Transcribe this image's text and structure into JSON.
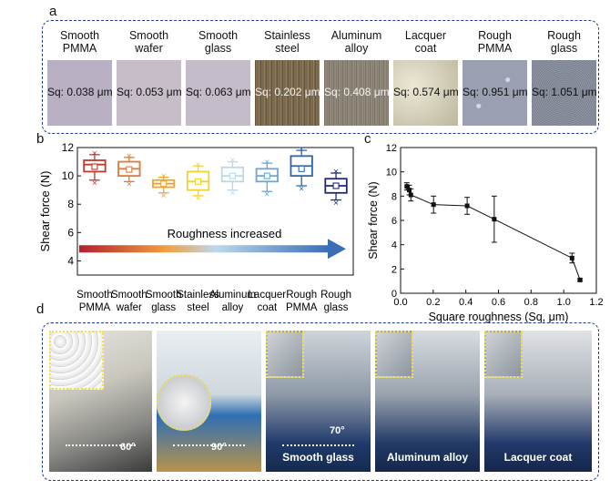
{
  "panels": {
    "a": "a",
    "b": "b",
    "c": "c",
    "d": "d"
  },
  "surfaces": [
    {
      "label": "Smooth PMMA",
      "line1": "Smooth",
      "line2": "PMMA",
      "sq": "Sq: 0.038 μm",
      "color": "#b9b0c4"
    },
    {
      "label": "Smooth wafer",
      "line1": "Smooth",
      "line2": "wafer",
      "sq": "Sq: 0.053 μm",
      "color": "#c6bdc9"
    },
    {
      "label": "Smooth glass",
      "line1": "Smooth",
      "line2": "glass",
      "sq": "Sq: 0.063 μm",
      "color": "#c4bcc8"
    },
    {
      "label": "Stainless steel",
      "line1": "Stainless",
      "line2": "steel",
      "sq": "Sq: 0.202 μm",
      "color": "#7a6a52"
    },
    {
      "label": "Aluminum alloy",
      "line1": "Aluminum",
      "line2": "alloy",
      "sq": "Sq: 0.408 μm",
      "color": "#8a8276"
    },
    {
      "label": "Lacquer coat",
      "line1": "Lacquer",
      "line2": "coat",
      "sq": "Sq: 0.574 μm",
      "color": "#d8d4c0"
    },
    {
      "label": "Rough PMMA",
      "line1": "Rough",
      "line2": "PMMA",
      "sq": "Sq: 0.951 μm",
      "color": "#a9adbc"
    },
    {
      "label": "Rough glass",
      "line1": "Rough",
      "line2": "glass",
      "sq": "Sq: 1.051 μm",
      "color": "#7f8593"
    }
  ],
  "chart_data": [
    {
      "type": "box",
      "ylabel": "Shear force (N)",
      "ylim": [
        3,
        12
      ],
      "yticks": [
        4,
        6,
        8,
        10,
        12
      ],
      "annotation": "Roughness increased",
      "categories": [
        {
          "line1": "Smooth",
          "line2": "PMMA",
          "color": "#c0392b",
          "q1": 10.3,
          "q3": 11.1,
          "median": 10.8,
          "mean": 10.65,
          "whisker_low": 9.7,
          "whisker_high": 11.5
        },
        {
          "line1": "Smooth",
          "line2": "wafer",
          "color": "#e07a3a",
          "q1": 10.0,
          "q3": 11.0,
          "median": 10.5,
          "mean": 10.45,
          "whisker_low": 9.6,
          "whisker_high": 11.3
        },
        {
          "line1": "Smooth",
          "line2": "glass",
          "color": "#f0a52a",
          "q1": 9.2,
          "q3": 9.7,
          "median": 9.45,
          "mean": 9.45,
          "whisker_low": 8.8,
          "whisker_high": 9.9
        },
        {
          "line1": "Stainless",
          "line2": "steel",
          "color": "#f2d22c",
          "q1": 9.0,
          "q3": 10.3,
          "median": 9.6,
          "mean": 9.6,
          "whisker_low": 8.6,
          "whisker_high": 10.7
        },
        {
          "line1": "Aluminum",
          "line2": "alloy",
          "color": "#bcd8e8",
          "q1": 9.6,
          "q3": 10.6,
          "median": 10.0,
          "mean": 10.0,
          "whisker_low": 9.0,
          "whisker_high": 11.0
        },
        {
          "line1": "Lacquer",
          "line2": "coat",
          "color": "#6aa7d6",
          "q1": 9.6,
          "q3": 10.5,
          "median": 10.0,
          "mean": 10.0,
          "whisker_low": 8.9,
          "whisker_high": 10.9
        },
        {
          "line1": "Rough",
          "line2": "PMMA",
          "color": "#2f66b2",
          "q1": 10.0,
          "q3": 11.4,
          "median": 10.7,
          "mean": 10.5,
          "whisker_low": 9.3,
          "whisker_high": 11.8
        },
        {
          "line1": "Rough",
          "line2": "glass",
          "color": "#1f2a7a",
          "q1": 8.8,
          "q3": 9.8,
          "median": 9.3,
          "mean": 9.3,
          "whisker_low": 8.3,
          "whisker_high": 10.2
        }
      ]
    },
    {
      "type": "line",
      "xlabel": "Square roughness (Sq, μm)",
      "ylabel": "Shear force (N)",
      "xlim": [
        0,
        1.2
      ],
      "ylim": [
        0,
        12
      ],
      "xticks": [
        0,
        0.2,
        0.4,
        0.6,
        0.8,
        1.0,
        1.2
      ],
      "yticks": [
        0,
        2,
        4,
        6,
        8,
        10,
        12
      ],
      "points": [
        {
          "x": 0.038,
          "y": 8.8,
          "err": 0.3
        },
        {
          "x": 0.053,
          "y": 8.5,
          "err": 0.4
        },
        {
          "x": 0.063,
          "y": 8.1,
          "err": 0.5
        },
        {
          "x": 0.202,
          "y": 7.3,
          "err": 0.7
        },
        {
          "x": 0.408,
          "y": 7.2,
          "err": 0.7
        },
        {
          "x": 0.574,
          "y": 6.1,
          "err": 1.9
        },
        {
          "x": 1.051,
          "y": 2.9,
          "err": 0.4
        },
        {
          "x": 1.1,
          "y": 1.1,
          "err": 0.1
        }
      ]
    }
  ],
  "photos": [
    {
      "caption": "",
      "angle": "60°"
    },
    {
      "caption": "",
      "angle": "90°"
    },
    {
      "caption": "Smooth glass",
      "angle": "70°"
    },
    {
      "caption": "Aluminum alloy",
      "angle": ""
    },
    {
      "caption": "Lacquer coat",
      "angle": ""
    }
  ]
}
